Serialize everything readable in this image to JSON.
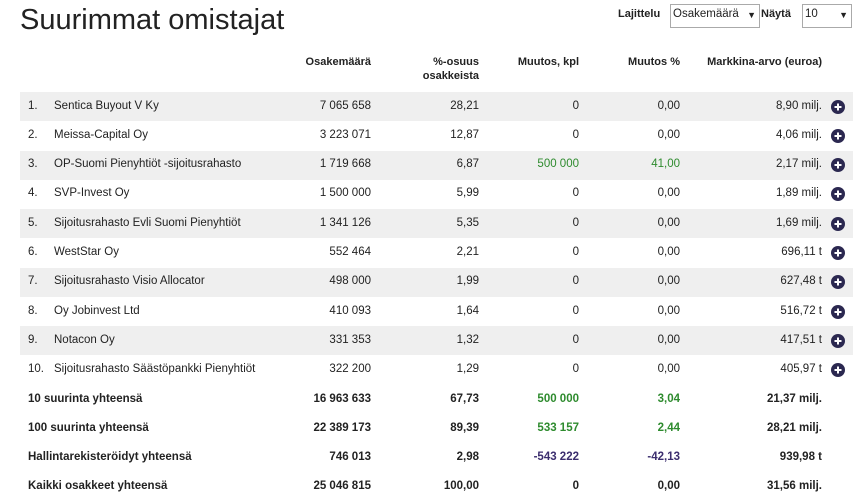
{
  "header": {
    "title": "Suurimmat omistajat",
    "sort_label": "Lajittelu",
    "sort_value": "Osakemäärä",
    "show_label": "Näytä",
    "show_value": "10"
  },
  "table": {
    "columns": [
      "Osakemäärä",
      [
        "%-osuus",
        "osakkeista"
      ],
      "Muutos, kpl",
      "Muutos %",
      "Markkina-arvo (euroa)"
    ],
    "rows": [
      {
        "rank": "1.",
        "name": "Sentica Buyout V Ky",
        "cells": [
          "7 065 658",
          "28,21",
          "0",
          "0,00",
          "8,90 milj."
        ]
      },
      {
        "rank": "2.",
        "name": "Meissa-Capital Oy",
        "cells": [
          "3 223 071",
          "12,87",
          "0",
          "0,00",
          "4,06 milj."
        ]
      },
      {
        "rank": "3.",
        "name": "OP-Suomi Pienyhtiöt -sijoitusrahasto",
        "cells": [
          "1 719 668",
          "6,87",
          "500 000",
          "41,00",
          "2,17 milj."
        ],
        "change_color": "#2e8b2e"
      },
      {
        "rank": "4.",
        "name": "SVP-Invest Oy",
        "cells": [
          "1 500 000",
          "5,99",
          "0",
          "0,00",
          "1,89 milj."
        ]
      },
      {
        "rank": "5.",
        "name": "Sijoitusrahasto Evli Suomi Pienyhtiöt",
        "cells": [
          "1 341 126",
          "5,35",
          "0",
          "0,00",
          "1,69 milj."
        ]
      },
      {
        "rank": "6.",
        "name": "WestStar Oy",
        "cells": [
          "552 464",
          "2,21",
          "0",
          "0,00",
          "696,11 t"
        ]
      },
      {
        "rank": "7.",
        "name": "Sijoitusrahasto Visio Allocator",
        "cells": [
          "498 000",
          "1,99",
          "0",
          "0,00",
          "627,48 t"
        ]
      },
      {
        "rank": "8.",
        "name": "Oy Jobinvest Ltd",
        "cells": [
          "410 093",
          "1,64",
          "0",
          "0,00",
          "516,72 t"
        ]
      },
      {
        "rank": "9.",
        "name": "Notacon Oy",
        "cells": [
          "331 353",
          "1,32",
          "0",
          "0,00",
          "417,51 t"
        ]
      },
      {
        "rank": "10.",
        "name": "Sijoitusrahasto Säästöpankki Pienyhtiöt",
        "cells": [
          "322 200",
          "1,29",
          "0",
          "0,00",
          "405,97 t"
        ]
      }
    ],
    "totals": [
      {
        "name": "10 suurinta yhteensä",
        "cells": [
          "16 963 633",
          "67,73",
          "500 000",
          "3,04",
          "21,37 milj."
        ],
        "change_color": "#2e8b2e"
      },
      {
        "name": "100 suurinta yhteensä",
        "cells": [
          "22 389 173",
          "89,39",
          "533 157",
          "2,44",
          "28,21 milj."
        ],
        "change_color": "#2e8b2e"
      },
      {
        "name": "Hallintarekisteröidyt yhteensä",
        "cells": [
          "746 013",
          "2,98",
          "-543 222",
          "-42,13",
          "939,98 t"
        ],
        "change_color": "#3b2d6e"
      },
      {
        "name": "Kaikki osakkeet yhteensä",
        "cells": [
          "25 046 815",
          "100,00",
          "0",
          "0,00",
          "31,56 milj."
        ]
      }
    ]
  }
}
